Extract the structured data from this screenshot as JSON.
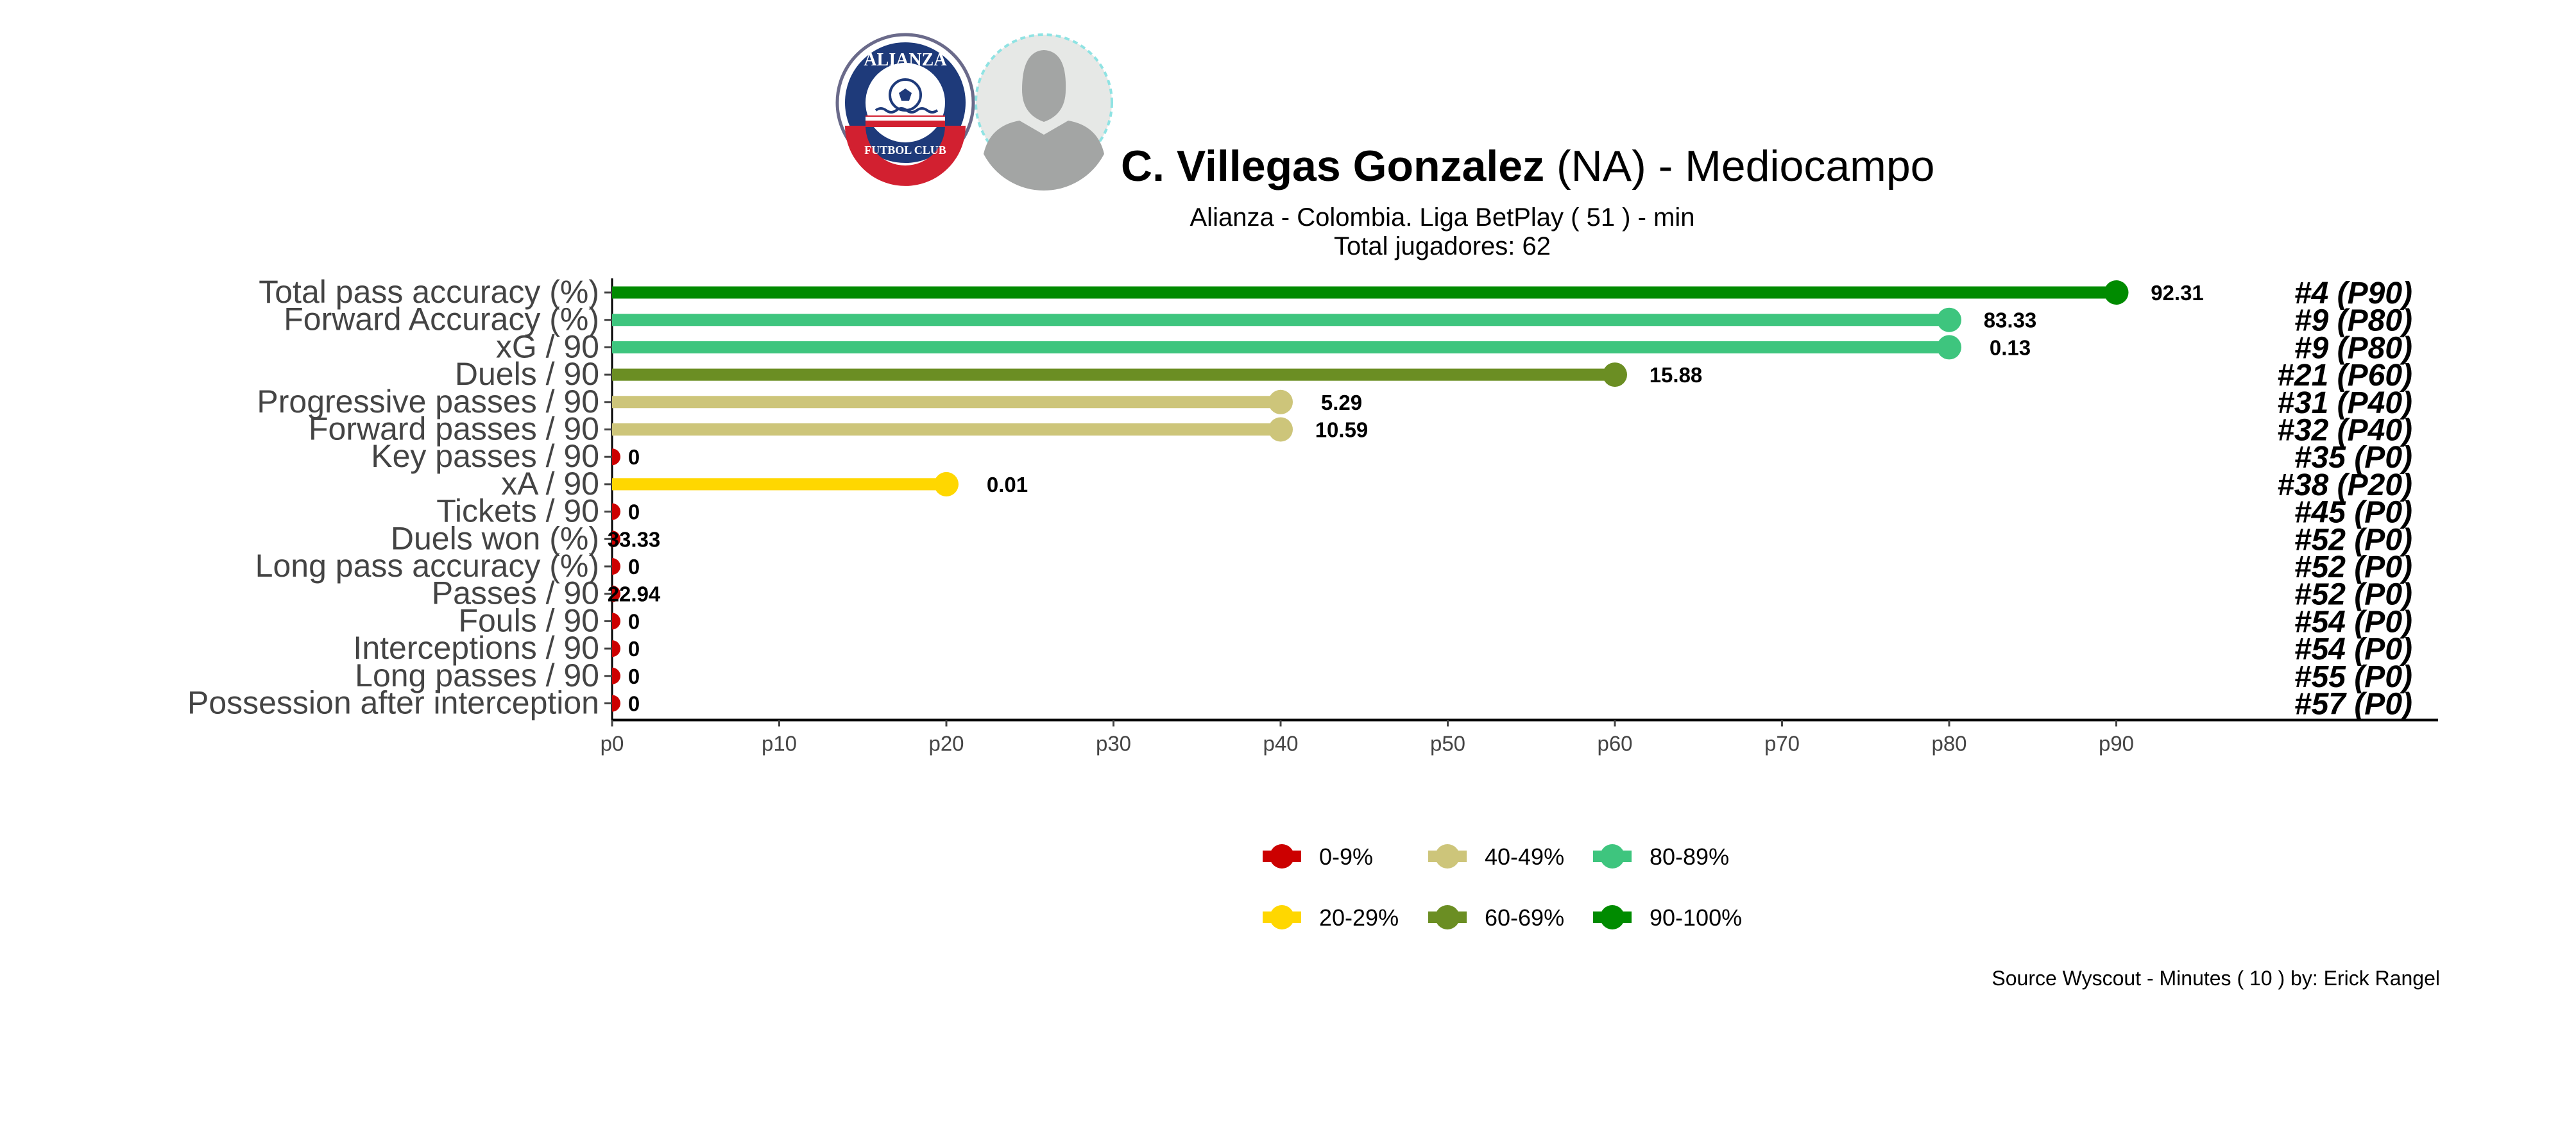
{
  "header": {
    "player_name": "C. Villegas Gonzalez",
    "player_suffix": " (NA) -  Mediocampo",
    "subtitle": "Alianza  -  Colombia. Liga BetPlay  ( 51 ) - min",
    "subtitle2": "Total jugadores:  62",
    "club_logo": {
      "top_text": "ALIANZA",
      "bottom_text": "FUTBOL CLUB",
      "icon": "soccer-ball-icon",
      "colors": {
        "navy": "#1e3a7a",
        "red": "#d22030",
        "white": "#ffffff"
      }
    },
    "player_photo": {
      "icon": "player-silhouette-icon"
    }
  },
  "colors": {
    "0-9%": "#cc0000",
    "20-29%": "#ffd700",
    "40-49%": "#cdc57a",
    "60-69%": "#6b8e23",
    "80-89%": "#3ec57e",
    "90-100%": "#008b00"
  },
  "chart_data": {
    "type": "lollipop",
    "xlim": [
      0,
      100
    ],
    "x_ticks": [
      "p0",
      "p10",
      "p20",
      "p30",
      "p40",
      "p50",
      "p60",
      "p70",
      "p80",
      "p90"
    ],
    "grid": false,
    "legend_position": "bottom",
    "rows": [
      {
        "label": "Total pass accuracy (%)",
        "percentile": 90,
        "value": "92.31",
        "rank": "#4 (P90)",
        "band": "90-100%"
      },
      {
        "label": "Forward Accuracy (%)",
        "percentile": 80,
        "value": "83.33",
        "rank": "#9 (P80)",
        "band": "80-89%"
      },
      {
        "label": "xG / 90",
        "percentile": 80,
        "value": "0.13",
        "rank": "#9 (P80)",
        "band": "80-89%"
      },
      {
        "label": "Duels / 90",
        "percentile": 60,
        "value": "15.88",
        "rank": "#21 (P60)",
        "band": "60-69%"
      },
      {
        "label": "Progressive passes / 90",
        "percentile": 40,
        "value": "5.29",
        "rank": "#31 (P40)",
        "band": "40-49%"
      },
      {
        "label": "Forward passes / 90",
        "percentile": 40,
        "value": "10.59",
        "rank": "#32 (P40)",
        "band": "40-49%"
      },
      {
        "label": "Key passes / 90",
        "percentile": 0,
        "value": "0",
        "rank": "#35 (P0)",
        "band": "0-9%"
      },
      {
        "label": "xA / 90",
        "percentile": 20,
        "value": "0.01",
        "rank": "#38 (P20)",
        "band": "20-29%"
      },
      {
        "label": "Tickets / 90",
        "percentile": 0,
        "value": "0",
        "rank": "#45 (P0)",
        "band": "0-9%"
      },
      {
        "label": "Duels won (%)",
        "percentile": 0,
        "value": "33.33",
        "rank": "#52 (P0)",
        "band": "0-9%"
      },
      {
        "label": "Long pass accuracy (%)",
        "percentile": 0,
        "value": "0",
        "rank": "#52 (P0)",
        "band": "0-9%"
      },
      {
        "label": "Passes / 90",
        "percentile": 0,
        "value": "22.94",
        "rank": "#52 (P0)",
        "band": "0-9%"
      },
      {
        "label": "Fouls / 90",
        "percentile": 0,
        "value": "0",
        "rank": "#54 (P0)",
        "band": "0-9%"
      },
      {
        "label": "Interceptions / 90",
        "percentile": 0,
        "value": "0",
        "rank": "#54 (P0)",
        "band": "0-9%"
      },
      {
        "label": "Long passes / 90",
        "percentile": 0,
        "value": "0",
        "rank": "#55 (P0)",
        "band": "0-9%"
      },
      {
        "label": "Possession after interception",
        "percentile": 0,
        "value": "0",
        "rank": "#57 (P0)",
        "band": "0-9%"
      }
    ],
    "legend": [
      "0-9%",
      "20-29%",
      "40-49%",
      "60-69%",
      "80-89%",
      "90-100%"
    ]
  },
  "footer": {
    "source": "Source Wyscout - Minutes ( 10 ) by: Erick Rangel"
  }
}
